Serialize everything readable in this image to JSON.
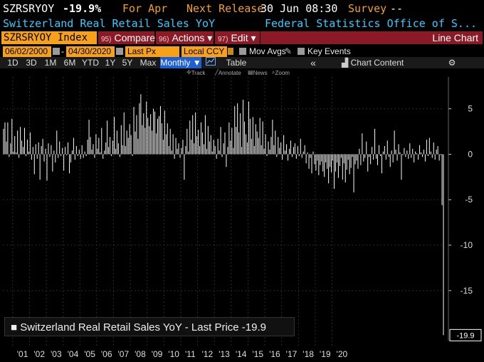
{
  "header": {
    "ticker": "SZRSRYOY",
    "change": "-19.9%",
    "for_label": "For Apr",
    "next_release_label": "Next Release",
    "next_release_value": "30 Jun 08:30",
    "survey_label": "Survey",
    "survey_value": "--",
    "description": "Switzerland Real Retail Sales YoY",
    "source": "Federal Statistics Office of S..."
  },
  "toolbar": {
    "index_field": "SZRSRYOY Index",
    "compare": {
      "num": "95)",
      "label": "Compare"
    },
    "actions": {
      "num": "96)",
      "label": "Actions ▾"
    },
    "edit": {
      "num": "97)",
      "label": "Edit ▾"
    },
    "chart_type": "Line Chart"
  },
  "params": {
    "start_date": "06/02/2000",
    "end_date": "04/30/2020",
    "price_field": "Last Px",
    "currency": "Local CCY",
    "mov_avgs": "Mov Avgs",
    "key_events": "Key Events"
  },
  "periods": [
    "1D",
    "3D",
    "1M",
    "6M",
    "YTD",
    "1Y",
    "5Y",
    "Max"
  ],
  "period_selected": "Monthly ▼",
  "table_label": "Table",
  "collapse_label": "«",
  "chart_content_label": "Chart Content",
  "mini_tools": {
    "track": "Track",
    "annotate": "Annotate",
    "news": "News",
    "zoom": "Zoom"
  },
  "legend": "Switzerland Real Retail Sales YoY - Last Price -19.9",
  "last_value_label": "-19.9",
  "colors": {
    "amber": "#f4a11b",
    "cyan": "#33ccff",
    "red_btn": "#8a1a25",
    "bar": "#ffffff"
  },
  "chart_data": {
    "type": "bar",
    "title": "",
    "xlabel": "",
    "ylabel": "",
    "ylim": [
      -20.5,
      8.5
    ],
    "yticks": [
      5,
      0,
      -5,
      -10,
      -15
    ],
    "x_start": "2000-06",
    "x_end": "2020-04",
    "x_tick_labels": [
      "'01",
      "'02",
      "'03",
      "'04",
      "'05",
      "'06",
      "'07",
      "'08",
      "'09",
      "'10",
      "'11",
      "'12",
      "'13",
      "'14",
      "'15",
      "'16",
      "'17",
      "'18",
      "'19",
      "'20"
    ],
    "series": [
      {
        "values": [
          2.8,
          3.5,
          1.4,
          3.5,
          -0.3,
          1.2,
          3.9,
          0.3,
          2.0,
          0.2,
          2.6,
          -0.4,
          3.0,
          1.5,
          0.8,
          2.9,
          -0.2,
          1.6,
          0.3,
          2.4,
          -0.6,
          0.8,
          -2.2,
          1.1,
          -0.5,
          1.3,
          -2.8,
          0.9,
          1.7,
          -0.8,
          0.6,
          -2.9,
          1.2,
          -0.3,
          1.0,
          -1.9,
          0.4,
          -0.9,
          2.6,
          -0.4,
          1.4,
          -0.2,
          0.7,
          -1.8,
          0.8,
          -0.1,
          1.3,
          -2.1,
          -0.9,
          0.4,
          1.8,
          -0.6,
          0.9,
          -0.2,
          0.5,
          -0.5,
          1.0,
          -0.4,
          0.3,
          -0.2,
          1.6,
          3.8,
          1.9,
          0.5,
          1.1,
          -0.4,
          2.2,
          0.6,
          1.8,
          0.2,
          2.9,
          -0.5,
          0.4,
          1.3,
          3.7,
          0.8,
          1.9,
          -0.2,
          1.5,
          4.1,
          0.6,
          2.6,
          1.2,
          -0.3,
          3.2,
          1.0,
          4.6,
          0.9,
          2.6,
          1.8,
          3.3,
          2.1,
          -0.2,
          5.2,
          2.5,
          4.3,
          1.7,
          5.6,
          6.6,
          3.2,
          4.5,
          2.9,
          5.8,
          4.0,
          3.1,
          4.4,
          2.6,
          5.0,
          4.7,
          2.3,
          3.9,
          4.2,
          5.3,
          3.4,
          1.6,
          4.8,
          2.2,
          3.4,
          0.9,
          2.8,
          0.4,
          2.2,
          -0.5,
          1.8,
          0.6,
          1.2,
          -0.4,
          0.7,
          1.6,
          -2.8,
          0.9,
          2.8,
          0.3,
          3.7,
          1.6,
          4.3,
          1.2,
          4.6,
          2.0,
          2.7,
          0.9,
          3.5,
          2.4,
          1.1,
          4.3,
          0.6,
          3.1,
          1.4,
          2.1,
          0.3,
          1.6,
          0.9,
          -0.5,
          1.7,
          0.4,
          3.0,
          -0.3,
          1.2,
          2.4,
          -1.4,
          0.8,
          3.5,
          1.5,
          2.9,
          0.7,
          5.3,
          3.0,
          5.6,
          2.4,
          4.5,
          0.8,
          6.0,
          3.6,
          2.2,
          1.3,
          5.8,
          3.9,
          1.7,
          4.1,
          0.9,
          3.3,
          2.5,
          1.8,
          4.0,
          1.0,
          3.6,
          0.6,
          2.2,
          -0.2,
          1.4,
          0.5,
          1.9,
          3.8,
          1.0,
          2.6,
          -0.3,
          1.9,
          0.7,
          1.3,
          -0.6,
          2.1,
          0.4,
          1.1,
          -0.7,
          0.6,
          1.5,
          -0.3,
          0.8,
          1.2,
          -0.5,
          0.9,
          -0.2,
          1.7,
          -0.4,
          0.3,
          1.0,
          -1.0,
          0.2,
          -1.6,
          -0.4,
          -2.1,
          0.3,
          -1.1,
          -1.8,
          -0.7,
          -2.3,
          -1.2,
          -0.8,
          -1.9,
          -2.5,
          -0.9,
          -1.6,
          -3.2,
          -1.4,
          -2.0,
          -0.7,
          -3.8,
          -1.9,
          -0.9,
          -2.6,
          -1.3,
          -0.4,
          -2.8,
          -1.0,
          -3.1,
          -1.7,
          -0.6,
          -2.2,
          -1.5,
          -0.3,
          -4.2,
          -1.1,
          -0.7,
          -1.6,
          0.6,
          -1.2,
          2.3,
          -0.8,
          -0.4,
          1.4,
          -1.9,
          -0.3,
          -1.1,
          0.8,
          -0.6,
          2.8,
          -0.5,
          -1.2,
          1.0,
          -0.2,
          -2.1,
          0.3,
          0.9,
          -0.6,
          1.5,
          -0.3,
          -1.4,
          0.4,
          -0.9,
          2.6,
          0.5,
          -0.7,
          1.1,
          0.2,
          -2.8,
          -0.1,
          0.7,
          -0.3,
          0.4,
          -0.5,
          1.2,
          -0.4,
          0.6,
          -0.9,
          0.3,
          0.1,
          -0.6,
          1.0,
          0.2,
          -0.3,
          0.5,
          -0.8,
          1.6,
          -0.2,
          1.8,
          0.3,
          -0.4,
          1.3,
          -0.6,
          0.5,
          0.9,
          -0.7,
          -0.1,
          -5.6,
          -19.9
        ]
      }
    ]
  }
}
